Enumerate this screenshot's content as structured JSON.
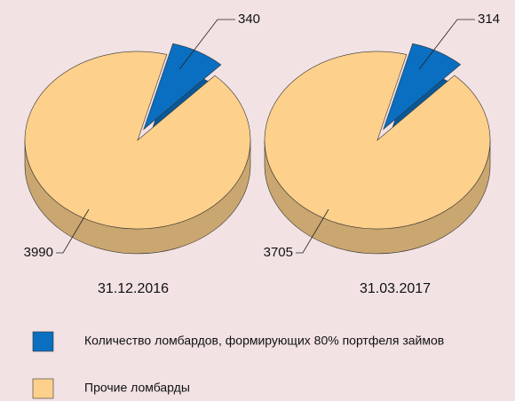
{
  "chart_data": [
    {
      "type": "pie",
      "title": "31.12.2016",
      "values": [
        340,
        3990
      ]
    },
    {
      "type": "pie",
      "title": "31.03.2017",
      "values": [
        314,
        3705
      ]
    }
  ],
  "legend": {
    "labels": [
      "Количество ломбардов, формирующих 80% портфеля займов",
      "Прочие ломбарды"
    ],
    "colors": [
      "#0a6fc1",
      "#fdd08c"
    ]
  }
}
